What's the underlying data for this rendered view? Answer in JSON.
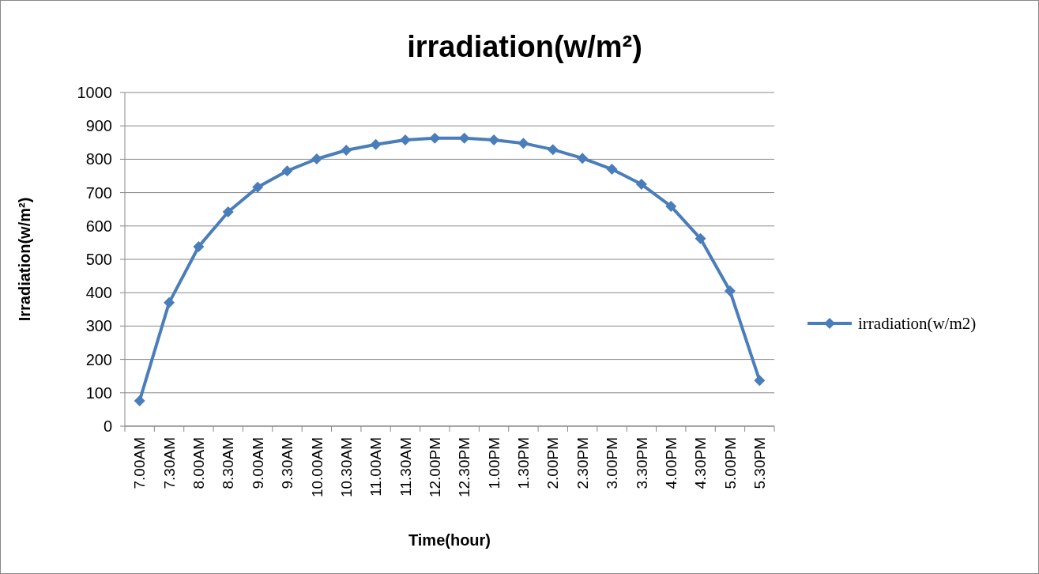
{
  "chart_data": {
    "type": "line",
    "title": "irradiation(w/m²)",
    "xlabel": "Time(hour)",
    "ylabel": "Irradiation(w/m²)",
    "categories": [
      "7.00AM",
      "7.30AM",
      "8.00AM",
      "8.30AM",
      "9.00AM",
      "9.30AM",
      "10.00AM",
      "10.30AM",
      "11.00AM",
      "11.30AM",
      "12.00PM",
      "12.30PM",
      "1.00PM",
      "1.30PM",
      "2.00PM",
      "2.30PM",
      "3.00PM",
      "3.30PM",
      "4.00PM",
      "4.30PM",
      "5.00PM",
      "5.30PM"
    ],
    "series": [
      {
        "name": "irradiation(w/m2)",
        "color": "#4a7ebb",
        "values": [
          76,
          370,
          538,
          642,
          716,
          765,
          801,
          827,
          844,
          858,
          863,
          863,
          858,
          848,
          829,
          803,
          770,
          725,
          659,
          562,
          405,
          137
        ]
      }
    ],
    "ylim": [
      0,
      1000
    ],
    "yticks": [
      0,
      100,
      200,
      300,
      400,
      500,
      600,
      700,
      800,
      900,
      1000
    ],
    "grid": "y",
    "legend": "right",
    "marker": "diamond",
    "line_style": "solid"
  }
}
